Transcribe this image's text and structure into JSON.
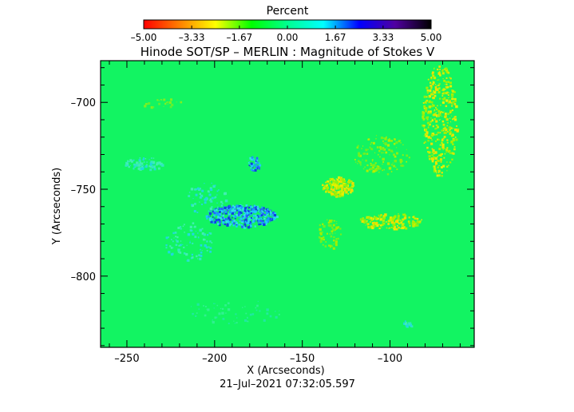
{
  "chart_data": {
    "type": "heatmap",
    "title": "Hinode SOT/SP – MERLIN : Magnitude of Stokes V",
    "xlabel": "X (Arcseconds)",
    "ylabel": "Y (Arcseconds)",
    "timestamp": "21–Jul–2021 07:32:05.597",
    "xlim": [
      -265,
      -52
    ],
    "ylim": [
      -841,
      -676
    ],
    "x_ticks": [
      {
        "value": -250,
        "label": "–250"
      },
      {
        "value": -200,
        "label": "–200"
      },
      {
        "value": -150,
        "label": "–150"
      },
      {
        "value": -100,
        "label": "–100"
      }
    ],
    "y_ticks": [
      {
        "value": -700,
        "label": "–700"
      },
      {
        "value": -750,
        "label": "–750"
      },
      {
        "value": -800,
        "label": "–800"
      }
    ],
    "colorbar": {
      "label": "Percent",
      "range": [
        -5.0,
        5.0
      ],
      "ticks": [
        {
          "value": -5.0,
          "label": "–5.00"
        },
        {
          "value": -3.33,
          "label": "–3.33"
        },
        {
          "value": -1.67,
          "label": "–1.67"
        },
        {
          "value": 0.0,
          "label": "0.00"
        },
        {
          "value": 1.67,
          "label": "1.67"
        },
        {
          "value": 3.33,
          "label": "3.33"
        },
        {
          "value": 5.0,
          "label": "5.00"
        }
      ],
      "colors": [
        "#ff0000",
        "#ff8000",
        "#ffff00",
        "#00ff00",
        "#00ff90",
        "#00ffff",
        "#0000ff",
        "#5000a0",
        "#000000"
      ]
    },
    "background_color": "#12f462",
    "grid": false
  }
}
